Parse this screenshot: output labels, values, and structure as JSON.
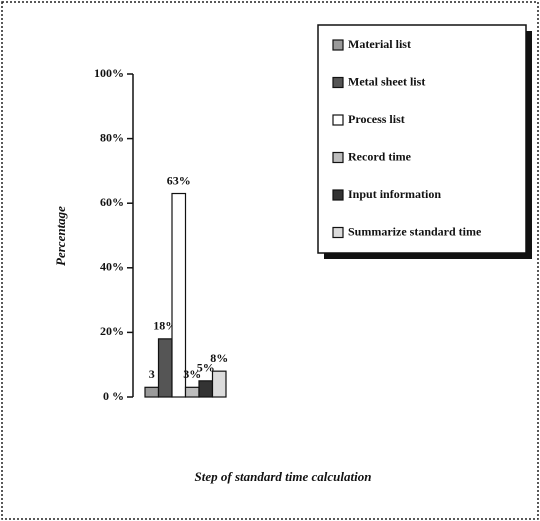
{
  "chart_data": {
    "type": "bar",
    "x_label": "Step of standard time calculation",
    "y_label": "Percentage",
    "ylim": [
      0,
      100
    ],
    "yticks": [
      {
        "value": 0,
        "label": "0 %"
      },
      {
        "value": 20,
        "label": "20%"
      },
      {
        "value": 40,
        "label": "40%"
      },
      {
        "value": 60,
        "label": "60%"
      },
      {
        "value": 80,
        "label": "80%"
      },
      {
        "value": 100,
        "label": "100%"
      }
    ],
    "series": [
      {
        "name": "Material list",
        "color": "#9a9a9a",
        "values": [
          3
        ],
        "value_labels": [
          "3"
        ]
      },
      {
        "name": "Metal sheet list",
        "color": "#555555",
        "values": [
          18
        ],
        "value_labels": [
          "18%"
        ]
      },
      {
        "name": "Process list",
        "color": "#ffffff",
        "values": [
          63
        ],
        "value_labels": [
          "63%"
        ]
      },
      {
        "name": "Record time",
        "color": "#bdbdbd",
        "values": [
          3
        ],
        "value_labels": [
          "3%"
        ]
      },
      {
        "name": "Input information",
        "color": "#333333",
        "values": [
          5
        ],
        "value_labels": [
          "5%"
        ]
      },
      {
        "name": "Summarize standard time",
        "color": "#dcdcdc",
        "values": [
          8
        ],
        "value_labels": [
          "8%"
        ]
      }
    ]
  }
}
